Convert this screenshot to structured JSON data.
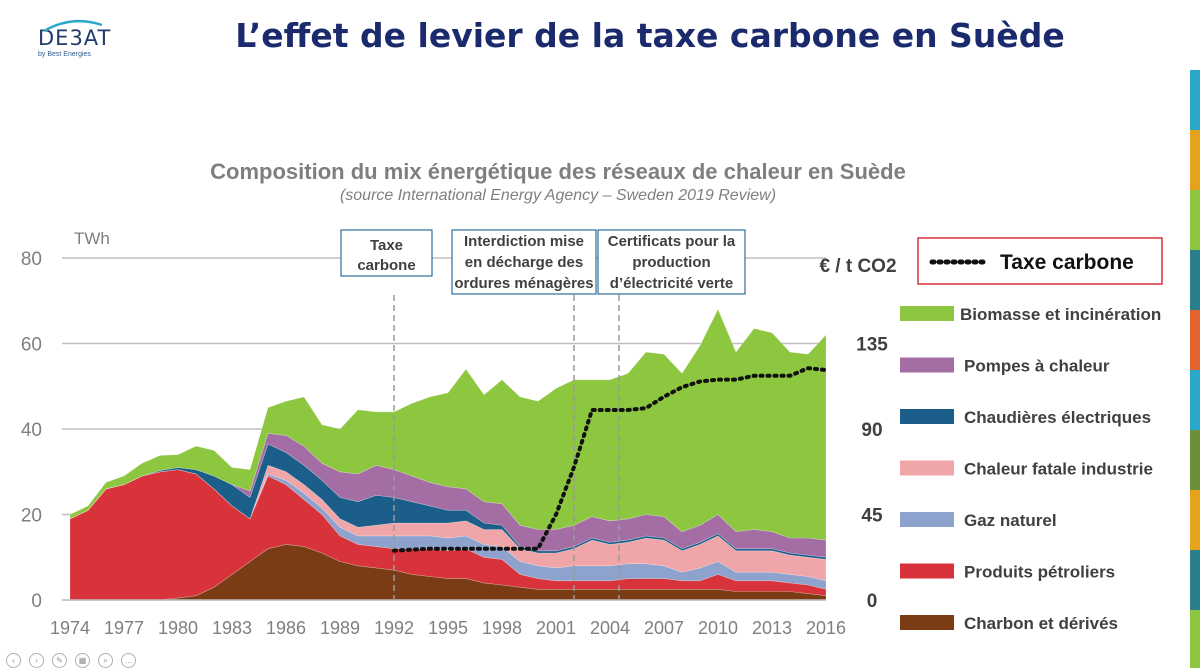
{
  "header": {
    "logo_main": "DE3AT",
    "logo_sub": "by Best Energies",
    "title": "L’effet de levier de la taxe carbone en Suède"
  },
  "colors": {
    "title": "#1a2a6c",
    "biomasse": "#8dc63f",
    "pompes": "#a46da4",
    "chaudieres": "#1b5e8a",
    "chaleur_fatale": "#f0a5a8",
    "gaz": "#8da2cc",
    "petroliers": "#d8323a",
    "charbon": "#7a3c14",
    "taxe": "#111111"
  },
  "chart_data": {
    "type": "area",
    "stacked": true,
    "title": "Composition du mix énergétique des réseaux de chaleur en Suède",
    "subtitle": "(source International Energy Agency – Sweden 2019 Review)",
    "ylabel": "TWh",
    "y2label": "€ / t CO2",
    "ylim": [
      0,
      80
    ],
    "y2lim": [
      0,
      135
    ],
    "yticks": [
      0,
      20,
      40,
      60,
      80
    ],
    "y2ticks": [
      0,
      45,
      90,
      135
    ],
    "x": [
      1974,
      1975,
      1976,
      1977,
      1978,
      1979,
      1980,
      1981,
      1982,
      1983,
      1984,
      1985,
      1986,
      1987,
      1988,
      1989,
      1990,
      1991,
      1992,
      1993,
      1994,
      1995,
      1996,
      1997,
      1998,
      1999,
      2000,
      2001,
      2002,
      2003,
      2004,
      2005,
      2006,
      2007,
      2008,
      2009,
      2010,
      2011,
      2012,
      2013,
      2014,
      2015,
      2016
    ],
    "xticks": [
      1974,
      1977,
      1980,
      1983,
      1986,
      1989,
      1992,
      1995,
      1998,
      2001,
      2004,
      2007,
      2010,
      2013,
      2016
    ],
    "grid": true,
    "series": [
      {
        "name": "Charbon et dérivés",
        "key": "charbon",
        "values": [
          0,
          0,
          0,
          0,
          0,
          0,
          0.5,
          1,
          3,
          6,
          9,
          12,
          13,
          12.5,
          11,
          9,
          8,
          7.5,
          7,
          6,
          5.5,
          5,
          5,
          4,
          3.5,
          3,
          2.5,
          2.5,
          2.5,
          2.5,
          2.5,
          2.5,
          2.5,
          2.5,
          2.5,
          2.5,
          2.5,
          2,
          2,
          2,
          2,
          1.5,
          1
        ]
      },
      {
        "name": "Produits pétroliers",
        "key": "petroliers",
        "values": [
          19,
          21,
          26,
          27,
          29,
          30,
          30,
          28.5,
          23,
          16,
          10,
          17,
          14,
          11,
          9,
          6,
          5,
          5,
          5,
          6,
          6.5,
          6.5,
          7,
          6,
          6,
          3,
          2.5,
          2,
          2,
          2,
          2,
          2.5,
          2.5,
          2.5,
          2,
          2,
          3.5,
          2.5,
          2.5,
          2.5,
          2,
          2,
          1.5
        ]
      },
      {
        "name": "Gaz naturel",
        "key": "gaz",
        "values": [
          0,
          0,
          0,
          0,
          0,
          0,
          0,
          0,
          0,
          0,
          0,
          0.5,
          1,
          1.5,
          1.5,
          2,
          2,
          2.5,
          3,
          3,
          3,
          3,
          3,
          3,
          3,
          3,
          3,
          3,
          3.5,
          3.5,
          3.5,
          3.5,
          3.5,
          3,
          2,
          3,
          3,
          2,
          2,
          2,
          2,
          2,
          2
        ]
      },
      {
        "name": "Chaleur fatale industrie",
        "key": "chaleur_fatale",
        "values": [
          0,
          0,
          0,
          0,
          0,
          0,
          0,
          0,
          0,
          0,
          0,
          2,
          2,
          2,
          2,
          2,
          2,
          2.5,
          3,
          3,
          3,
          3.5,
          3.5,
          3.5,
          4,
          3,
          3,
          3.5,
          4,
          6,
          5,
          5,
          6,
          6,
          5,
          5.5,
          6,
          5,
          5,
          5,
          4.5,
          4.5,
          5
        ]
      },
      {
        "name": "Chaudières électriques",
        "key": "chaudieres",
        "values": [
          0,
          0,
          0,
          0,
          0,
          0.3,
          0.5,
          1,
          3,
          5,
          5,
          5,
          4.5,
          4.5,
          4.5,
          5,
          6,
          7,
          6,
          5,
          4,
          3,
          2.5,
          1.5,
          1,
          0.5,
          0.5,
          0.5,
          0.5,
          0.5,
          0.5,
          0.5,
          0.5,
          0.5,
          0.5,
          0.5,
          0.5,
          0.5,
          0.5,
          0.5,
          0.5,
          0.5,
          0.5
        ]
      },
      {
        "name": "Pompes à chaleur",
        "key": "pompes",
        "values": [
          0,
          0,
          0,
          0,
          0,
          0,
          0,
          0,
          0,
          0,
          1.5,
          2.5,
          4,
          4.5,
          4,
          6,
          6.5,
          7,
          6.5,
          6,
          5.5,
          5.5,
          5,
          5,
          5,
          5,
          5,
          5,
          5,
          5,
          5,
          5,
          5,
          5,
          4,
          4,
          4.5,
          4,
          4.5,
          4,
          3.5,
          4,
          4
        ]
      },
      {
        "name": "Biomasse et incinération",
        "key": "biomasse",
        "values": [
          1,
          1,
          1.5,
          2,
          3,
          3.5,
          3,
          5.5,
          6,
          4,
          5,
          6,
          8,
          11.5,
          9,
          10,
          15,
          12.5,
          13.5,
          17,
          20,
          22,
          28,
          25,
          29,
          30,
          30,
          33,
          34,
          32,
          33,
          34,
          38,
          38,
          37,
          42,
          48,
          42,
          47,
          46.5,
          43.5,
          43,
          48
        ]
      }
    ],
    "tax_line": {
      "name": "Taxe carbone",
      "points": [
        [
          1992,
          26
        ],
        [
          1993,
          26.5
        ],
        [
          1994,
          27
        ],
        [
          1995,
          27
        ],
        [
          1996,
          27
        ],
        [
          1997,
          27
        ],
        [
          1998,
          27
        ],
        [
          1999,
          27
        ],
        [
          2000,
          27
        ],
        [
          2001,
          45
        ],
        [
          2002,
          70
        ],
        [
          2003,
          100
        ],
        [
          2004,
          100
        ],
        [
          2005,
          100
        ],
        [
          2006,
          101
        ],
        [
          2007,
          107
        ],
        [
          2008,
          112
        ],
        [
          2009,
          115
        ],
        [
          2010,
          116
        ],
        [
          2011,
          116
        ],
        [
          2012,
          118
        ],
        [
          2013,
          118
        ],
        [
          2014,
          118
        ],
        [
          2015,
          122
        ],
        [
          2016,
          121
        ]
      ]
    },
    "annotations": [
      {
        "year": 1992,
        "text": [
          "Taxe",
          "carbone"
        ]
      },
      {
        "year": 2002,
        "text": [
          "Interdiction mise",
          "en décharge des",
          "ordures ménagères"
        ]
      },
      {
        "year": 2004.5,
        "text": [
          "Certificats pour la",
          "production",
          "d’électricité verte"
        ]
      }
    ],
    "legend_placement": "right"
  }
}
